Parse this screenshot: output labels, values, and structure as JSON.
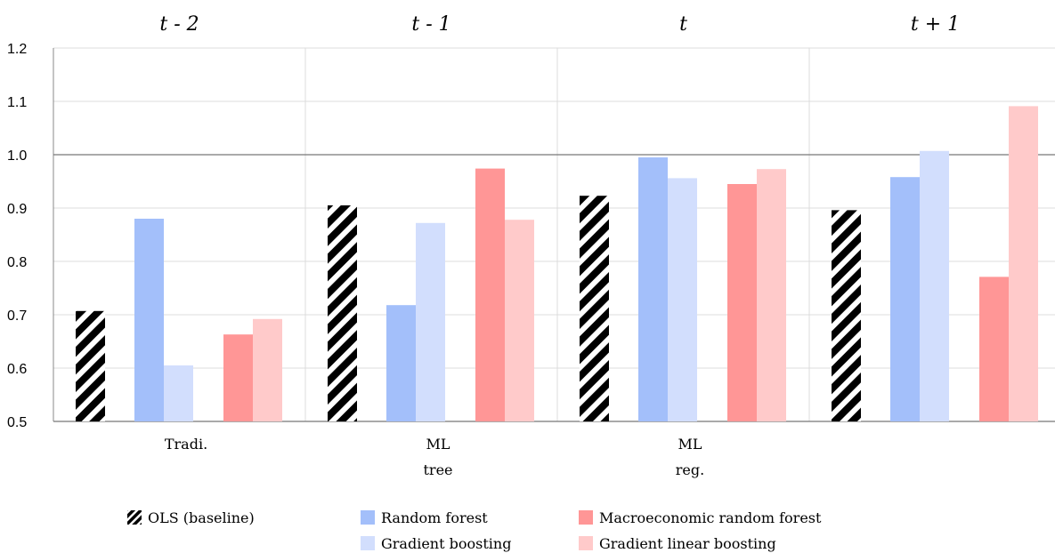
{
  "chart_data": {
    "type": "bar",
    "panels": [
      "t - 2",
      "t - 1",
      "t",
      "t + 1"
    ],
    "ylim": [
      0.5,
      1.2
    ],
    "yticks": [
      "0.5",
      "0.6",
      "0.7",
      "0.8",
      "0.9",
      "1.0",
      "1.1",
      "1.2"
    ],
    "reference_line": 1.0,
    "groups": [
      {
        "label_lines": [
          "Tradi."
        ],
        "series": [
          "ols"
        ]
      },
      {
        "label_lines": [
          "ML",
          "tree"
        ],
        "series": [
          "rf",
          "gb"
        ]
      },
      {
        "label_lines": [
          "ML",
          "reg."
        ],
        "series": [
          "mrf",
          "glb"
        ]
      }
    ],
    "series": [
      {
        "id": "ols",
        "name": "OLS (baseline)",
        "color": "#000000",
        "pattern": "diagonal-stripes",
        "values": [
          0.707,
          0.905,
          0.923,
          0.896
        ]
      },
      {
        "id": "rf",
        "name": "Random forest",
        "color": "#a3bffa",
        "values": [
          0.88,
          0.718,
          0.995,
          0.958
        ]
      },
      {
        "id": "gb",
        "name": "Gradient boosting",
        "color": "#d2defd",
        "values": [
          0.605,
          0.872,
          0.956,
          1.007
        ]
      },
      {
        "id": "mrf",
        "name": "Macroeconomic random forest",
        "color": "#ff9696",
        "values": [
          0.663,
          0.974,
          0.945,
          0.771
        ]
      },
      {
        "id": "glb",
        "name": "Gradient linear boosting",
        "color": "#ffcaca",
        "values": [
          0.692,
          0.878,
          0.973,
          1.091
        ]
      }
    ],
    "legend": {
      "placement": "bottom"
    },
    "grid": true
  }
}
